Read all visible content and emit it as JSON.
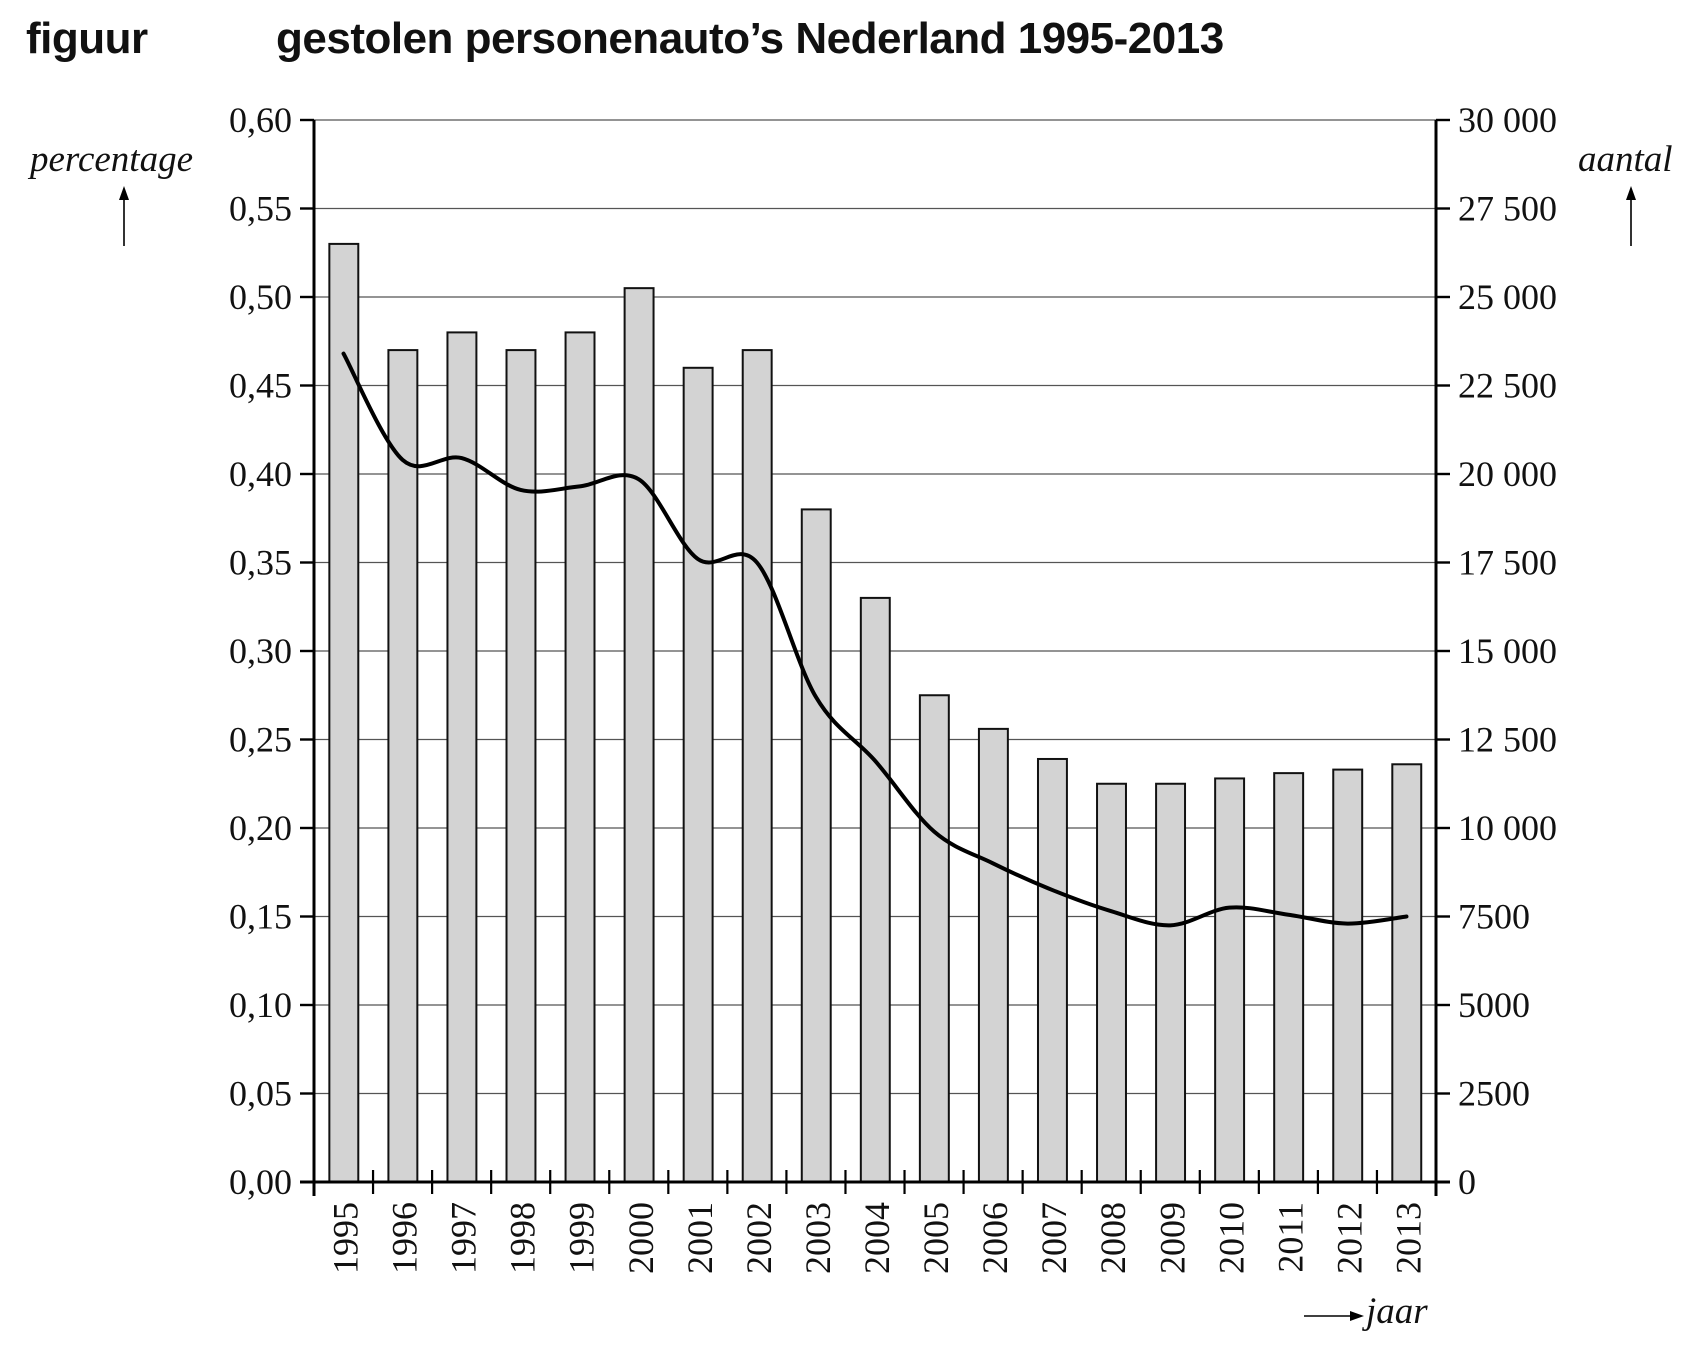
{
  "figure": {
    "label": "figuur",
    "title": "gestolen personenauto’s Nederland 1995-2013"
  },
  "axes": {
    "left_label": "percentage",
    "right_label": "aantal",
    "x_label": "jaar",
    "left_ticks": [
      "0,00",
      "0,05",
      "0,10",
      "0,15",
      "0,20",
      "0,25",
      "0,30",
      "0,35",
      "0,40",
      "0,45",
      "0,50",
      "0,55",
      "0,60"
    ],
    "right_ticks": [
      "0",
      "2500",
      "5000",
      "7500",
      "10 000",
      "12 500",
      "15 000",
      "17 500",
      "20 000",
      "22 500",
      "25 000",
      "27 500",
      "30 000"
    ]
  },
  "colors": {
    "bar_fill": "#d3d3d3",
    "bar_stroke": "#111111",
    "line": "#000000",
    "grid": "#555555",
    "axis": "#000000"
  },
  "chart_data": {
    "type": "bar+line",
    "title": "gestolen personenauto’s Nederland 1995-2013",
    "categories": [
      "1995",
      "1996",
      "1997",
      "1998",
      "1999",
      "2000",
      "2001",
      "2002",
      "2003",
      "2004",
      "2005",
      "2006",
      "2007",
      "2008",
      "2009",
      "2010",
      "2011",
      "2012",
      "2013"
    ],
    "xlabel": "jaar",
    "series": [
      {
        "name": "percentage",
        "type": "bar",
        "axis": "left",
        "ylabel": "percentage",
        "ylim": [
          0,
          0.6
        ],
        "values": [
          0.53,
          0.47,
          0.48,
          0.47,
          0.48,
          0.505,
          0.46,
          0.47,
          0.38,
          0.33,
          0.275,
          0.256,
          0.239,
          0.225,
          0.225,
          0.228,
          0.231,
          0.233,
          0.236
        ]
      },
      {
        "name": "aantal",
        "type": "line",
        "axis": "right",
        "ylabel": "aantal",
        "ylim": [
          0,
          30000
        ],
        "values": [
          23400,
          20400,
          20450,
          19550,
          19650,
          19850,
          17600,
          17500,
          13700,
          11900,
          9900,
          9000,
          8250,
          7650,
          7250,
          7750,
          7550,
          7300,
          7500
        ]
      }
    ],
    "left_axis_ticks": [
      0,
      0.05,
      0.1,
      0.15,
      0.2,
      0.25,
      0.3,
      0.35,
      0.4,
      0.45,
      0.5,
      0.55,
      0.6
    ],
    "right_axis_ticks": [
      0,
      2500,
      5000,
      7500,
      10000,
      12500,
      15000,
      17500,
      20000,
      22500,
      25000,
      27500,
      30000
    ],
    "grid": true,
    "legend": null
  }
}
